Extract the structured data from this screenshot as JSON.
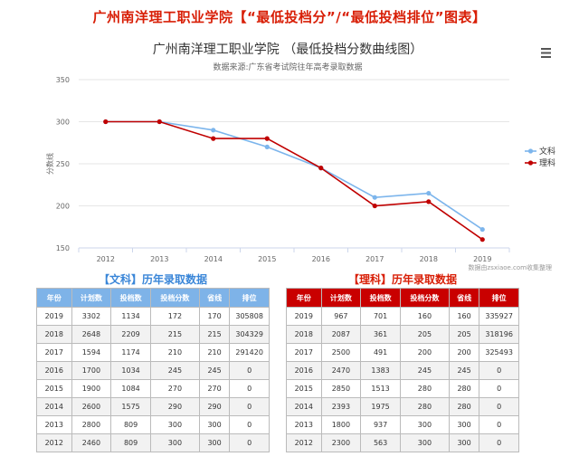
{
  "page_title": "广州南洋理工职业学院【“最低投档分”/“最低投档排位”图表】",
  "chart_data": {
    "type": "line",
    "title": "广州南洋理工职业学院 （最低投档分数曲线图）",
    "subtitle": "数据来源:广东省考试院往年高考录取数据",
    "ylabel": "分数线",
    "xlabel": "",
    "categories": [
      "2012",
      "2013",
      "2014",
      "2015",
      "2016",
      "2017",
      "2018",
      "2019"
    ],
    "ylim": [
      150,
      350
    ],
    "yticks": [
      150,
      200,
      250,
      300,
      350
    ],
    "grid": true,
    "legend_position": "right",
    "series": [
      {
        "name": "文科",
        "color": "#7cb5ec",
        "values": [
          300,
          300,
          290,
          270,
          245,
          210,
          215,
          172
        ]
      },
      {
        "name": "理科",
        "color": "#c00000",
        "values": [
          300,
          300,
          280,
          280,
          245,
          200,
          205,
          160
        ]
      }
    ],
    "credit": "数据由zsxiaoe.com收集整理"
  },
  "menu_icon": "hamburger-menu-icon",
  "tables": {
    "wenke": {
      "caption": "【文科】历年录取数据",
      "headers": [
        "年份",
        "计划数",
        "投档数",
        "投档分数",
        "省线",
        "排位"
      ],
      "rows": [
        [
          "2019",
          "3302",
          "1134",
          "172",
          "170",
          "305808"
        ],
        [
          "2018",
          "2648",
          "2209",
          "215",
          "215",
          "304329"
        ],
        [
          "2017",
          "1594",
          "1174",
          "210",
          "210",
          "291420"
        ],
        [
          "2016",
          "1700",
          "1034",
          "245",
          "245",
          "0"
        ],
        [
          "2015",
          "1900",
          "1084",
          "270",
          "270",
          "0"
        ],
        [
          "2014",
          "2600",
          "1575",
          "290",
          "290",
          "0"
        ],
        [
          "2013",
          "2800",
          "809",
          "300",
          "300",
          "0"
        ],
        [
          "2012",
          "2460",
          "809",
          "300",
          "300",
          "0"
        ]
      ]
    },
    "like": {
      "caption": "【理科】历年录取数据",
      "headers": [
        "年份",
        "计划数",
        "投档数",
        "投档分数",
        "省线",
        "排位"
      ],
      "rows": [
        [
          "2019",
          "967",
          "701",
          "160",
          "160",
          "335927"
        ],
        [
          "2018",
          "2087",
          "361",
          "205",
          "205",
          "318196"
        ],
        [
          "2017",
          "2500",
          "491",
          "200",
          "200",
          "325493"
        ],
        [
          "2016",
          "2470",
          "1383",
          "245",
          "245",
          "0"
        ],
        [
          "2015",
          "2850",
          "1513",
          "280",
          "280",
          "0"
        ],
        [
          "2014",
          "2393",
          "1975",
          "280",
          "280",
          "0"
        ],
        [
          "2013",
          "1800",
          "937",
          "300",
          "300",
          "0"
        ],
        [
          "2012",
          "2300",
          "563",
          "300",
          "300",
          "0"
        ]
      ]
    }
  }
}
